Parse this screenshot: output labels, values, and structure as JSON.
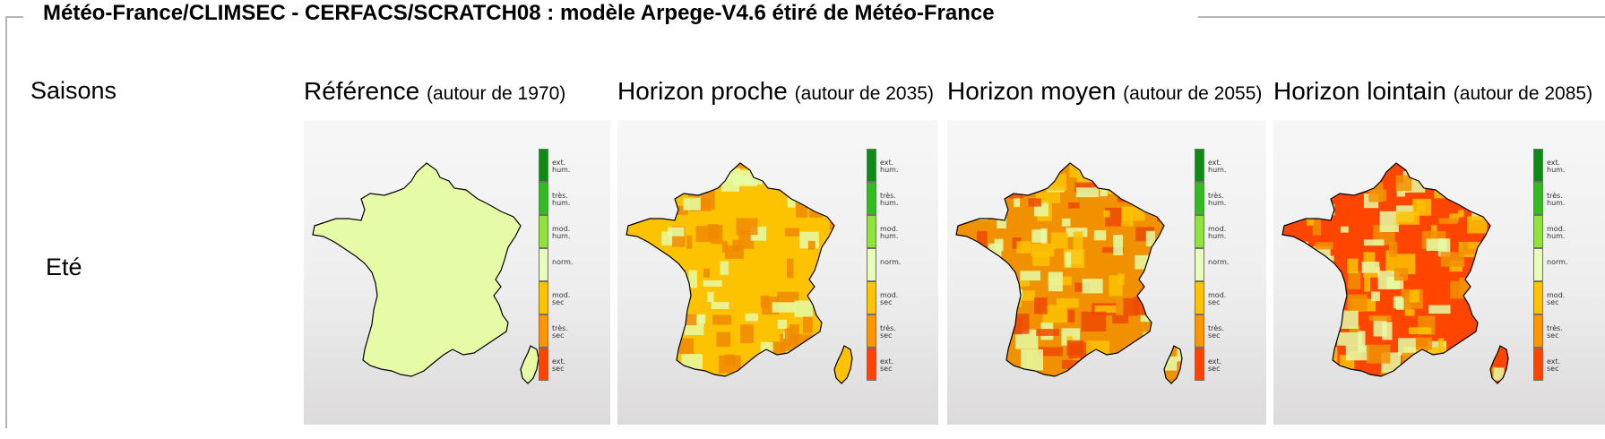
{
  "header": {
    "title": "Météo-France/CLIMSEC - CERFACS/SCRATCH08 : modèle Arpege-V4.6 étiré de Météo-France"
  },
  "row_header": {
    "saisons_label": "Saisons",
    "season": "Eté"
  },
  "columns": [
    {
      "title": "Référence",
      "subtitle": "(autour de 1970)",
      "dominant_class": "norm.",
      "base_color": "#e5fba6",
      "patch_colors": []
    },
    {
      "title": "Horizon proche",
      "subtitle": "(autour de 2035)",
      "dominant_class": "mod. sec",
      "base_color": "#fdc200",
      "patch_colors": [
        "#e5fba6",
        "#f08a00"
      ]
    },
    {
      "title": "Horizon moyen",
      "subtitle": "(autour de 2055)",
      "dominant_class": "très. sec",
      "base_color": "#f29100",
      "patch_colors": [
        "#fdc200",
        "#e5fba6",
        "#ee4a00"
      ]
    },
    {
      "title": "Horizon lointain",
      "subtitle": "(autour de 2085)",
      "dominant_class": "ext. sec",
      "base_color": "#ff4500",
      "patch_colors": [
        "#f29100",
        "#fdc200",
        "#e5fba6"
      ]
    }
  ],
  "legend": [
    {
      "label": "ext. hum.",
      "color": "#0e8a17"
    },
    {
      "label": "très. hum.",
      "color": "#33bb22"
    },
    {
      "label": "mod. hum.",
      "color": "#8fe33c"
    },
    {
      "label": "norm.",
      "color": "#e8fbbb"
    },
    {
      "label": "mod. sec",
      "color": "#ffc400"
    },
    {
      "label": "très. sec",
      "color": "#ff9500"
    },
    {
      "label": "ext. sec",
      "color": "#ff4400"
    }
  ]
}
